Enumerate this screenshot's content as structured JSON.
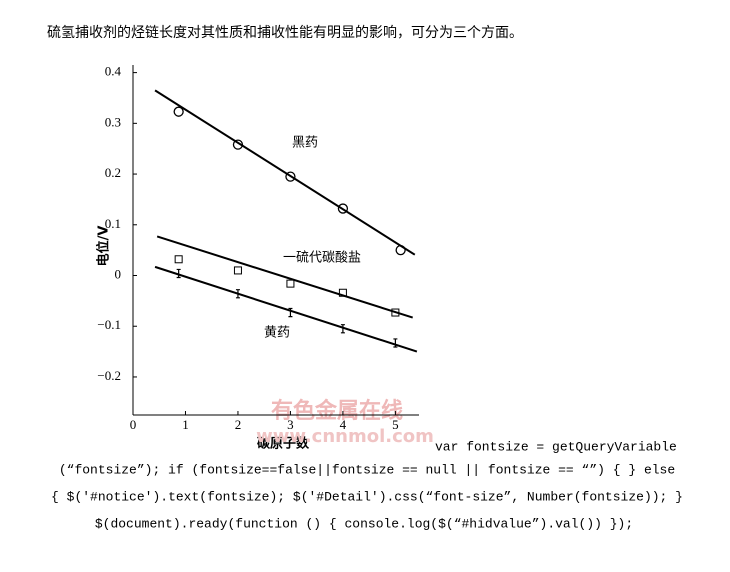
{
  "intro": "硫氢捕收剂的烃链长度对其性质和捕收性能有明显的影响，可分为三个方面。",
  "chart_data": {
    "type": "scatter",
    "x_label": "碳原子数",
    "y_label": "电位/V",
    "xlim": [
      0,
      5.45
    ],
    "ylim": [
      -0.275,
      0.415
    ],
    "xticks": [
      0,
      1,
      2,
      3,
      4,
      5
    ],
    "yticks": [
      0.4,
      0.3,
      0.2,
      0.1,
      0,
      {
        "value": -0.1,
        "label": "−0.1"
      },
      {
        "value": -0.2,
        "label": "−0.2"
      }
    ],
    "series": [
      {
        "name": "黑药",
        "marker": "circle",
        "color": "#000000",
        "x": [
          0.87,
          2,
          3,
          4,
          5.1
        ],
        "values": [
          0.323,
          0.258,
          0.195,
          0.132,
          0.05
        ],
        "fit": {
          "x": [
            0.42,
            5.37
          ],
          "y": [
            0.365,
            0.041
          ]
        }
      },
      {
        "name": "一硫代碳酸盐",
        "marker": "square",
        "color": "#000000",
        "x": [
          0.87,
          2,
          3,
          4,
          5
        ],
        "values": [
          0.032,
          0.01,
          -0.016,
          -0.034,
          -0.073
        ],
        "fit": {
          "x": [
            0.46,
            5.33
          ],
          "y": [
            0.077,
            -0.083
          ]
        }
      },
      {
        "name": "黄药",
        "marker": "errorbar",
        "color": "#000000",
        "x": [
          0.87,
          2,
          3,
          4,
          5
        ],
        "values": [
          0.004,
          -0.036,
          -0.073,
          -0.105,
          -0.133
        ],
        "errors": [
          0.008,
          0.008,
          0.008,
          0.008,
          0.008
        ],
        "fit": {
          "x": [
            0.42,
            5.41
          ],
          "y": [
            0.017,
            -0.15
          ]
        }
      }
    ],
    "watermark": [
      "有色金属在线",
      "www.cnnmol.com"
    ]
  },
  "code_lines": [
    "var fontsize = getQueryVariable",
    "(“fontsize”); if (fontsize==false||fontsize == null || fontsize == “”) { } else",
    "{ $('#notice').text(fontsize); $('#Detail').css(“font-size”, Number(fontsize)); }",
    "$(document).ready(function () { console.log($(“#hidvalue”).val()) });"
  ]
}
